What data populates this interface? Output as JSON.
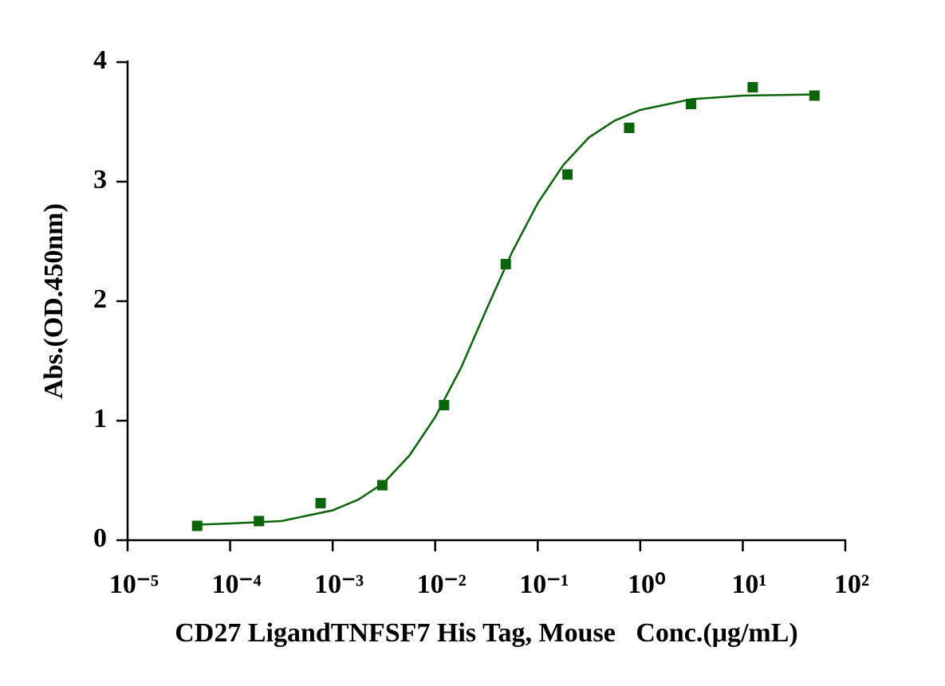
{
  "chart_data": {
    "type": "scatter",
    "x_label": "CD27 LigandTNFSF7 His Tag, Mouse   Conc.(μg/mL)",
    "y_label": "Abs.(OD.450nm)",
    "xscale": "log",
    "color": "#0a640a",
    "xlim": [
      1e-05,
      100
    ],
    "xticks": [
      {
        "value": 1e-05,
        "label": "10⁻⁵"
      },
      {
        "value": 0.0001,
        "label": "10⁻⁴"
      },
      {
        "value": 0.001,
        "label": "10⁻³"
      },
      {
        "value": 0.01,
        "label": "10⁻²"
      },
      {
        "value": 0.1,
        "label": "10⁻¹"
      },
      {
        "value": 1,
        "label": "10⁰"
      },
      {
        "value": 10,
        "label": "10¹"
      },
      {
        "value": 100,
        "label": "10²"
      }
    ],
    "ylim": [
      0,
      4
    ],
    "yticks": [
      0,
      1,
      2,
      3,
      4
    ],
    "x": [
      4.77e-05,
      0.000191,
      0.000763,
      0.00305,
      0.0122,
      0.0488,
      0.195,
      0.78,
      3.125,
      12.5,
      50
    ],
    "values": [
      0.12,
      0.16,
      0.31,
      0.46,
      1.13,
      2.31,
      3.06,
      3.45,
      3.65,
      3.79,
      3.72
    ],
    "curve": {
      "x": [
        4.79e-05,
        0.0001,
        0.000316,
        0.001,
        0.00178,
        0.00316,
        0.00562,
        0.01,
        0.0178,
        0.0316,
        0.0562,
        0.1,
        0.178,
        0.316,
        0.562,
        1,
        3.16,
        10,
        50
      ],
      "values": [
        0.13,
        0.14,
        0.16,
        0.25,
        0.34,
        0.48,
        0.71,
        1.03,
        1.44,
        1.93,
        2.41,
        2.82,
        3.14,
        3.37,
        3.51,
        3.6,
        3.69,
        3.72,
        3.73
      ]
    }
  }
}
